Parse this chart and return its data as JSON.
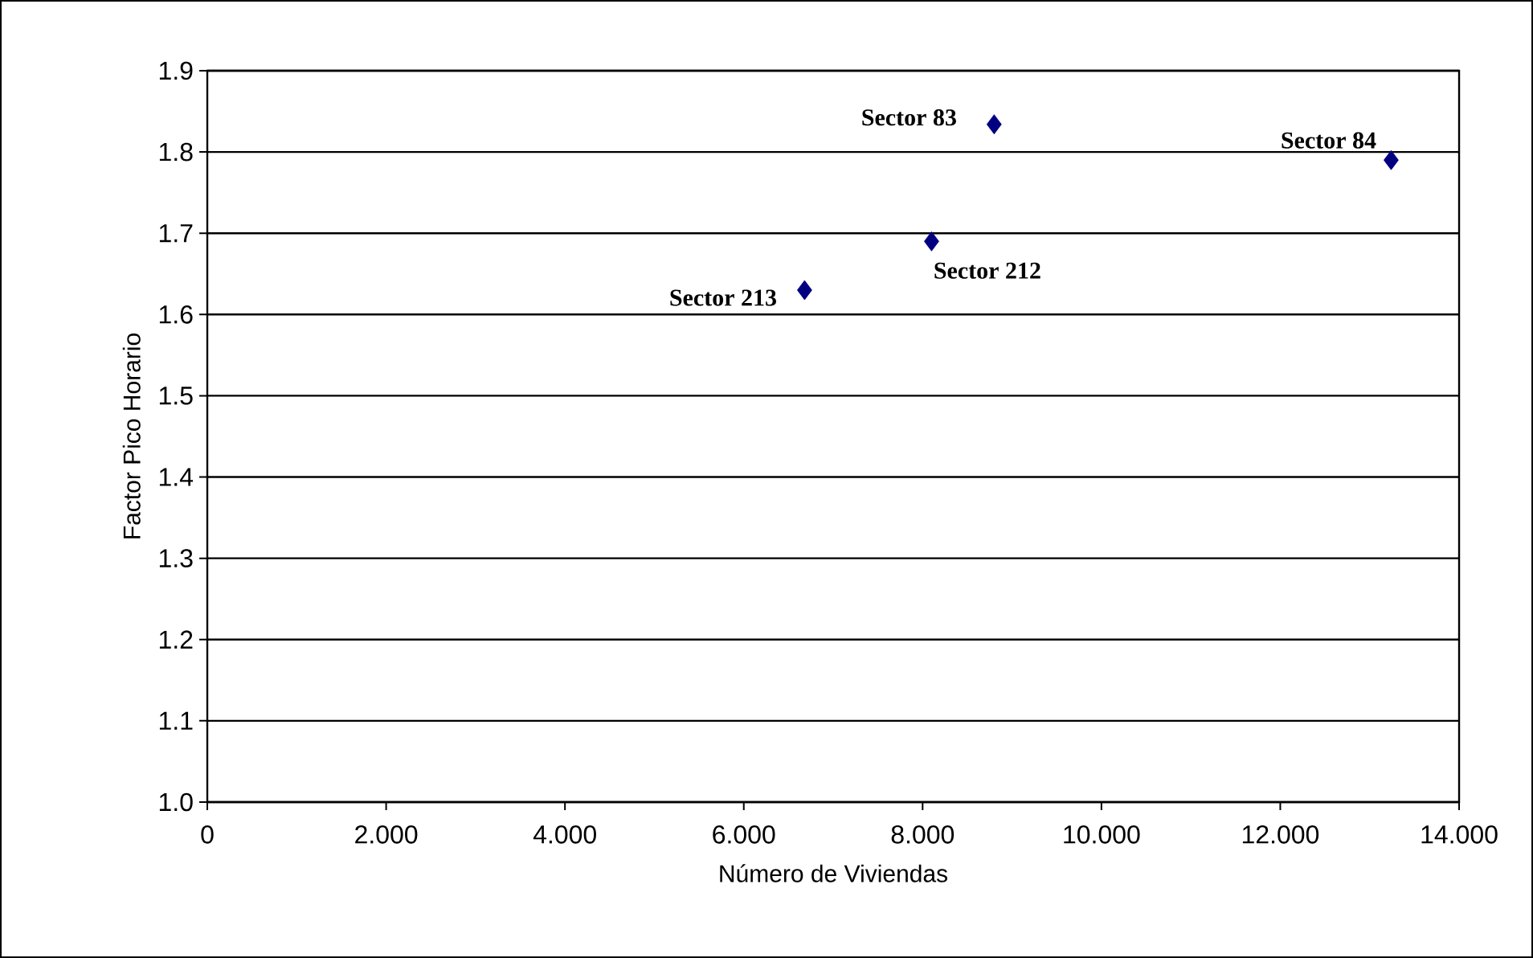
{
  "chart_data": {
    "type": "scatter",
    "xlabel": "Número de Viviendas",
    "ylabel": "Factor Pico Horario",
    "x": [
      8.8,
      13.24,
      8.1,
      6.68
    ],
    "values": [
      1.834,
      1.79,
      1.69,
      1.63
    ],
    "color": "#000080",
    "marker": "diamond",
    "grid": "y",
    "xlim": [
      0,
      14
    ],
    "ylim": [
      1.0,
      1.9
    ],
    "xticks": [
      0,
      {
        "value": 2,
        "label": "2.000"
      },
      {
        "value": 4,
        "label": "4.000"
      },
      {
        "value": 6,
        "label": "6.000"
      },
      {
        "value": 8,
        "label": "8.000"
      },
      {
        "value": 10,
        "label": "10.000"
      },
      {
        "value": 12,
        "label": "12.000"
      },
      {
        "value": 14,
        "label": "14.000"
      }
    ],
    "yticks": [
      {
        "value": 1.0,
        "label": "1.0"
      },
      1.1,
      1.2,
      1.3,
      1.4,
      1.5,
      1.6,
      1.7,
      1.8,
      1.9
    ],
    "annotations": [
      {
        "text": "Sector 83",
        "x": 8.8,
        "y": 1.834
      },
      {
        "text": "Sector 84",
        "x": 13.24,
        "y": 1.79
      },
      {
        "text": "Sector 212",
        "x": 8.1,
        "y": 1.69
      },
      {
        "text": "Sector 213",
        "x": 6.68,
        "y": 1.63
      }
    ]
  }
}
